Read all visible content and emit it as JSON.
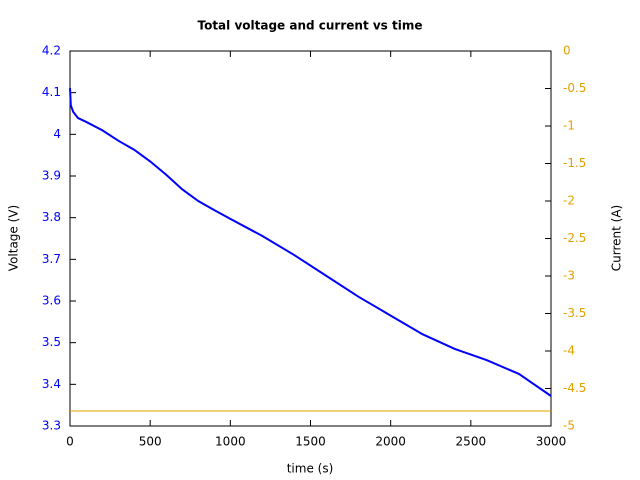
{
  "chart_data": {
    "type": "line",
    "title": "Total voltage and current vs time",
    "xlabel": "time (s)",
    "ylabel": "Voltage (V)",
    "y2label": "Current (A)",
    "xlim": [
      0,
      3000
    ],
    "xticks": [
      0,
      500,
      1000,
      1500,
      2000,
      2500,
      3000
    ],
    "ylim": [
      3.3,
      4.2
    ],
    "yticks": [
      3.3,
      3.4,
      3.5,
      3.6,
      3.7,
      3.8,
      3.9,
      4,
      4.1,
      4.2
    ],
    "y2lim": [
      -5,
      0
    ],
    "y2ticks": [
      -5,
      -4.5,
      -4,
      -3.5,
      -3,
      -2.5,
      -2,
      -1.5,
      -1,
      -0.5,
      0
    ],
    "ycolor": "#0000ff",
    "y2color": "#e5a000",
    "series": [
      {
        "color": "#0000ff",
        "x": [
          0,
          5,
          20,
          50,
          100,
          200,
          300,
          400,
          500,
          600,
          700,
          800,
          900,
          1000,
          1200,
          1400,
          1600,
          1800,
          2000,
          2200,
          2400,
          2600,
          2800,
          3000
        ],
        "values": [
          4.111,
          4.07,
          4.054,
          4.039,
          4.03,
          4.01,
          3.985,
          3.963,
          3.935,
          3.903,
          3.868,
          3.84,
          3.818,
          3.797,
          3.756,
          3.71,
          3.66,
          3.61,
          3.565,
          3.52,
          3.485,
          3.458,
          3.425,
          3.372
        ]
      },
      {
        "color": "#e5a000",
        "axis": "y2",
        "x": [
          0,
          3000
        ],
        "values": [
          -4.8,
          -4.8
        ]
      }
    ]
  }
}
